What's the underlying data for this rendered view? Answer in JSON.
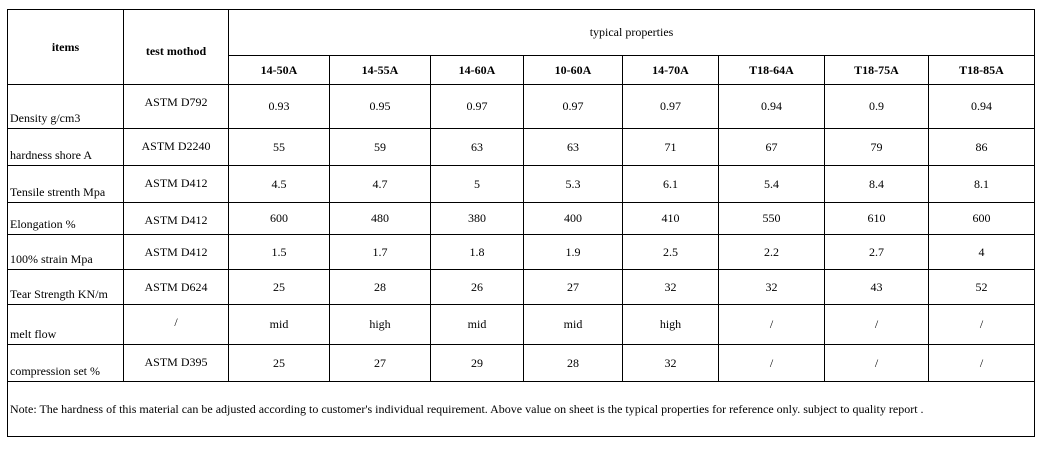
{
  "header": {
    "items_label": "items",
    "method_label": "test mothod",
    "typical_label": "typical properties",
    "grades": [
      "14-50A",
      "14-55A",
      "14-60A",
      "10-60A",
      "14-70A",
      "T18-64A",
      "T18-75A",
      "T18-85A"
    ]
  },
  "rows": [
    {
      "item": "Density  g/cm3",
      "method": "ASTM D792",
      "values": [
        "0.93",
        "0.95",
        "0.97",
        "0.97",
        "0.97",
        "0.94",
        "0.9",
        "0.94"
      ]
    },
    {
      "item": " hardness  shore A",
      "method": "ASTM D2240",
      "values": [
        "55",
        "59",
        "63",
        "63",
        "71",
        "67",
        "79",
        "86"
      ]
    },
    {
      "item": "Tensile strenth  Mpa",
      "method": "ASTM D412",
      "values": [
        "4.5",
        "4.7",
        "5",
        "5.3",
        "6.1",
        "5.4",
        "8.4",
        "8.1"
      ]
    },
    {
      "item": "Elongation  %",
      "method": "ASTM D412",
      "values": [
        "600",
        "480",
        "380",
        "400",
        "410",
        "550",
        "610",
        "600"
      ]
    },
    {
      "item": "100% strain  Mpa",
      "method": "ASTM D412",
      "values": [
        "1.5",
        "1.7",
        "1.8",
        "1.9",
        "2.5",
        "2.2",
        "2.7",
        "4"
      ]
    },
    {
      "item": "Tear Strength  KN/m",
      "method": "ASTM D624",
      "values": [
        "25",
        "28",
        "26",
        "27",
        "32",
        "32",
        "43",
        "52"
      ]
    },
    {
      "item": " melt flow",
      "method": "/",
      "values": [
        "mid",
        "high",
        "mid",
        "mid",
        "high",
        "/",
        "/",
        "/"
      ]
    },
    {
      "item": "compression set  %",
      "method": "ASTM D395",
      "values": [
        "25",
        "27",
        "29",
        "28",
        "32",
        "/",
        "/",
        "/"
      ]
    }
  ],
  "note": "Note: The hardness of this material can be adjusted according to customer's individual requirement. Above value on sheet is the typical properties for reference only. subject to quality report ."
}
